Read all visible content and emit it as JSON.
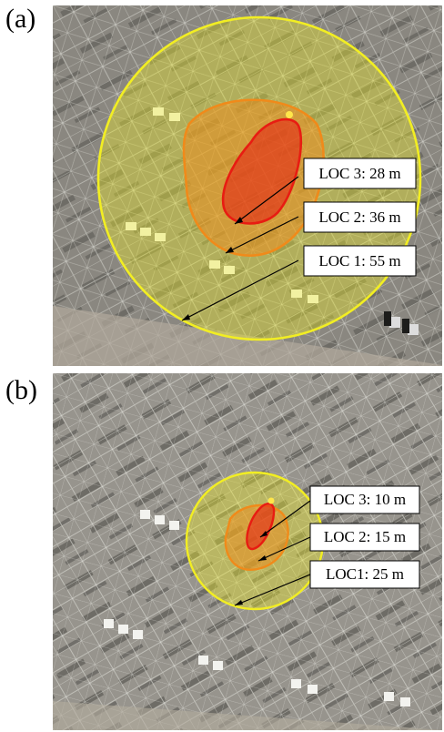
{
  "panels": [
    {
      "label": "(a)",
      "zones": [
        {
          "text": "LOC 3: 28 m",
          "color": "#e81c12"
        },
        {
          "text": "LOC 2: 36 m",
          "color": "#f08a1a"
        },
        {
          "text": "LOC 1: 55 m",
          "color": "#f2ee22"
        }
      ]
    },
    {
      "label": "(b)",
      "zones": [
        {
          "text": "LOC 3: 10 m",
          "color": "#e81c12"
        },
        {
          "text": "LOC 2: 15 m",
          "color": "#f08a1a"
        },
        {
          "text": "LOC1: 25 m",
          "color": "#f2ee22"
        }
      ]
    }
  ]
}
